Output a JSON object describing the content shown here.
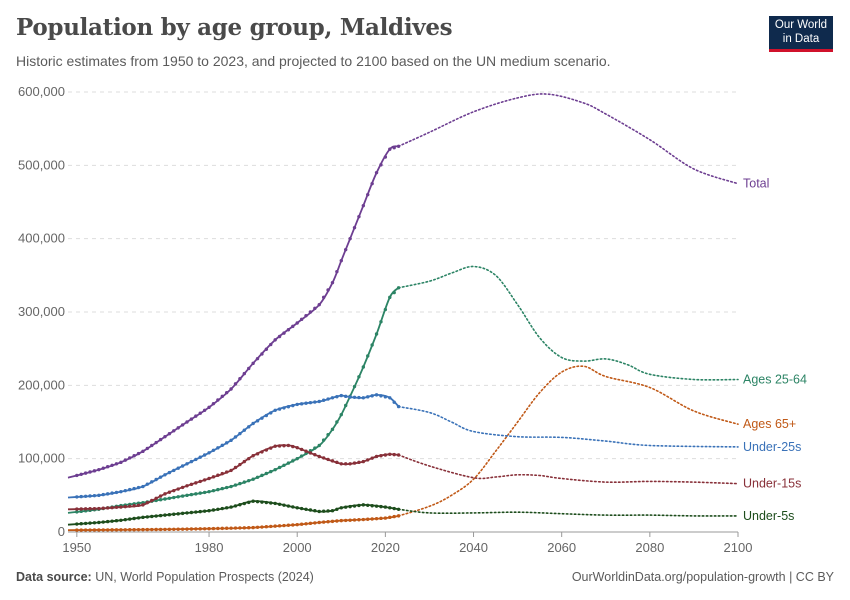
{
  "header": {
    "title": "Population by age group, Maldives",
    "subtitle": "Historic estimates from 1950 to 2023, and projected to 2100 based on the UN medium scenario."
  },
  "logo": {
    "line1": "Our World",
    "line2": "in Data"
  },
  "footer": {
    "source_label": "Data source:",
    "source_text": " UN, World Population Prospects (2024)",
    "url": "OurWorldinData.org/population-growth | CC BY"
  },
  "chart_data": {
    "type": "line",
    "xlim": [
      1948,
      2100
    ],
    "ylim": [
      0,
      600000
    ],
    "x_ticks": [
      1950,
      1980,
      2000,
      2020,
      2040,
      2060,
      2080,
      2100
    ],
    "y_ticks": [
      0,
      100000,
      200000,
      300000,
      400000,
      500000,
      600000
    ],
    "y_tick_labels": [
      "0",
      "100,000",
      "200,000",
      "300,000",
      "400,000",
      "500,000",
      "600,000"
    ],
    "grid": "horizontal-dashed",
    "legend": "inline-right",
    "historic_end_year": 2023,
    "series": [
      {
        "name": "Total",
        "color": "#6d3e91",
        "points": [
          [
            1948,
            74000
          ],
          [
            1955,
            85000
          ],
          [
            1960,
            95000
          ],
          [
            1965,
            110000
          ],
          [
            1970,
            130000
          ],
          [
            1975,
            150000
          ],
          [
            1980,
            170000
          ],
          [
            1985,
            195000
          ],
          [
            1990,
            230000
          ],
          [
            1995,
            262000
          ],
          [
            2000,
            285000
          ],
          [
            2005,
            310000
          ],
          [
            2008,
            340000
          ],
          [
            2010,
            370000
          ],
          [
            2012,
            400000
          ],
          [
            2015,
            445000
          ],
          [
            2018,
            490000
          ],
          [
            2021,
            522000
          ],
          [
            2023,
            526000
          ],
          [
            2030,
            545000
          ],
          [
            2040,
            573000
          ],
          [
            2050,
            592000
          ],
          [
            2057,
            597000
          ],
          [
            2065,
            585000
          ],
          [
            2070,
            570000
          ],
          [
            2080,
            535000
          ],
          [
            2090,
            495000
          ],
          [
            2100,
            475000
          ]
        ]
      },
      {
        "name": "Ages 25-64",
        "color": "#2c8465",
        "points": [
          [
            1948,
            26000
          ],
          [
            1955,
            31000
          ],
          [
            1960,
            36000
          ],
          [
            1965,
            40000
          ],
          [
            1970,
            45000
          ],
          [
            1975,
            50000
          ],
          [
            1980,
            55000
          ],
          [
            1985,
            62000
          ],
          [
            1990,
            72000
          ],
          [
            1995,
            85000
          ],
          [
            2000,
            100000
          ],
          [
            2005,
            118000
          ],
          [
            2008,
            140000
          ],
          [
            2010,
            160000
          ],
          [
            2012,
            185000
          ],
          [
            2015,
            225000
          ],
          [
            2018,
            270000
          ],
          [
            2021,
            320000
          ],
          [
            2023,
            333000
          ],
          [
            2030,
            342000
          ],
          [
            2035,
            353000
          ],
          [
            2040,
            362000
          ],
          [
            2045,
            350000
          ],
          [
            2050,
            310000
          ],
          [
            2055,
            265000
          ],
          [
            2060,
            238000
          ],
          [
            2065,
            233000
          ],
          [
            2070,
            236000
          ],
          [
            2075,
            228000
          ],
          [
            2080,
            215000
          ],
          [
            2090,
            208000
          ],
          [
            2100,
            208000
          ]
        ]
      },
      {
        "name": "Ages 65+",
        "color": "#c05917",
        "points": [
          [
            1948,
            2500
          ],
          [
            1960,
            3000
          ],
          [
            1970,
            3500
          ],
          [
            1980,
            4500
          ],
          [
            1990,
            6000
          ],
          [
            2000,
            10000
          ],
          [
            2005,
            13000
          ],
          [
            2010,
            15500
          ],
          [
            2015,
            17000
          ],
          [
            2020,
            19000
          ],
          [
            2023,
            22000
          ],
          [
            2030,
            35000
          ],
          [
            2035,
            50000
          ],
          [
            2040,
            72000
          ],
          [
            2045,
            110000
          ],
          [
            2050,
            150000
          ],
          [
            2055,
            190000
          ],
          [
            2060,
            218000
          ],
          [
            2065,
            226000
          ],
          [
            2070,
            212000
          ],
          [
            2080,
            197000
          ],
          [
            2090,
            165000
          ],
          [
            2100,
            147000
          ]
        ]
      },
      {
        "name": "Under-25s",
        "color": "#3a72b8",
        "points": [
          [
            1948,
            47000
          ],
          [
            1955,
            50000
          ],
          [
            1960,
            55000
          ],
          [
            1965,
            62000
          ],
          [
            1970,
            78000
          ],
          [
            1975,
            93000
          ],
          [
            1980,
            108000
          ],
          [
            1985,
            125000
          ],
          [
            1990,
            148000
          ],
          [
            1995,
            166000
          ],
          [
            2000,
            174000
          ],
          [
            2005,
            178000
          ],
          [
            2008,
            183000
          ],
          [
            2010,
            186000
          ],
          [
            2012,
            184000
          ],
          [
            2015,
            183000
          ],
          [
            2018,
            187000
          ],
          [
            2021,
            183000
          ],
          [
            2023,
            171000
          ],
          [
            2030,
            163000
          ],
          [
            2035,
            150000
          ],
          [
            2040,
            137000
          ],
          [
            2050,
            130000
          ],
          [
            2060,
            129000
          ],
          [
            2070,
            124000
          ],
          [
            2080,
            118000
          ],
          [
            2100,
            116000
          ]
        ]
      },
      {
        "name": "Under-15s",
        "color": "#883039",
        "points": [
          [
            1948,
            31000
          ],
          [
            1955,
            32000
          ],
          [
            1960,
            34000
          ],
          [
            1965,
            37000
          ],
          [
            1970,
            52000
          ],
          [
            1975,
            63000
          ],
          [
            1980,
            73000
          ],
          [
            1985,
            84000
          ],
          [
            1990,
            104000
          ],
          [
            1995,
            117000
          ],
          [
            1998,
            118000
          ],
          [
            2000,
            115000
          ],
          [
            2005,
            103000
          ],
          [
            2010,
            93000
          ],
          [
            2012,
            93000
          ],
          [
            2015,
            96000
          ],
          [
            2018,
            103000
          ],
          [
            2021,
            106000
          ],
          [
            2023,
            105000
          ],
          [
            2030,
            90000
          ],
          [
            2040,
            74000
          ],
          [
            2045,
            75000
          ],
          [
            2050,
            78000
          ],
          [
            2055,
            77000
          ],
          [
            2060,
            73000
          ],
          [
            2070,
            68000
          ],
          [
            2080,
            69000
          ],
          [
            2090,
            68000
          ],
          [
            2100,
            66000
          ]
        ]
      },
      {
        "name": "Under-5s",
        "color": "#1d4d1c",
        "points": [
          [
            1948,
            10000
          ],
          [
            1955,
            13000
          ],
          [
            1960,
            16000
          ],
          [
            1965,
            20000
          ],
          [
            1970,
            23000
          ],
          [
            1975,
            26000
          ],
          [
            1980,
            29000
          ],
          [
            1985,
            34000
          ],
          [
            1990,
            42000
          ],
          [
            1995,
            39000
          ],
          [
            2000,
            33000
          ],
          [
            2005,
            28000
          ],
          [
            2008,
            29000
          ],
          [
            2010,
            33000
          ],
          [
            2015,
            37000
          ],
          [
            2020,
            34000
          ],
          [
            2023,
            31000
          ],
          [
            2030,
            26000
          ],
          [
            2040,
            26000
          ],
          [
            2050,
            27000
          ],
          [
            2060,
            25000
          ],
          [
            2070,
            23000
          ],
          [
            2080,
            23000
          ],
          [
            2090,
            22000
          ],
          [
            2100,
            22000
          ]
        ]
      }
    ]
  }
}
